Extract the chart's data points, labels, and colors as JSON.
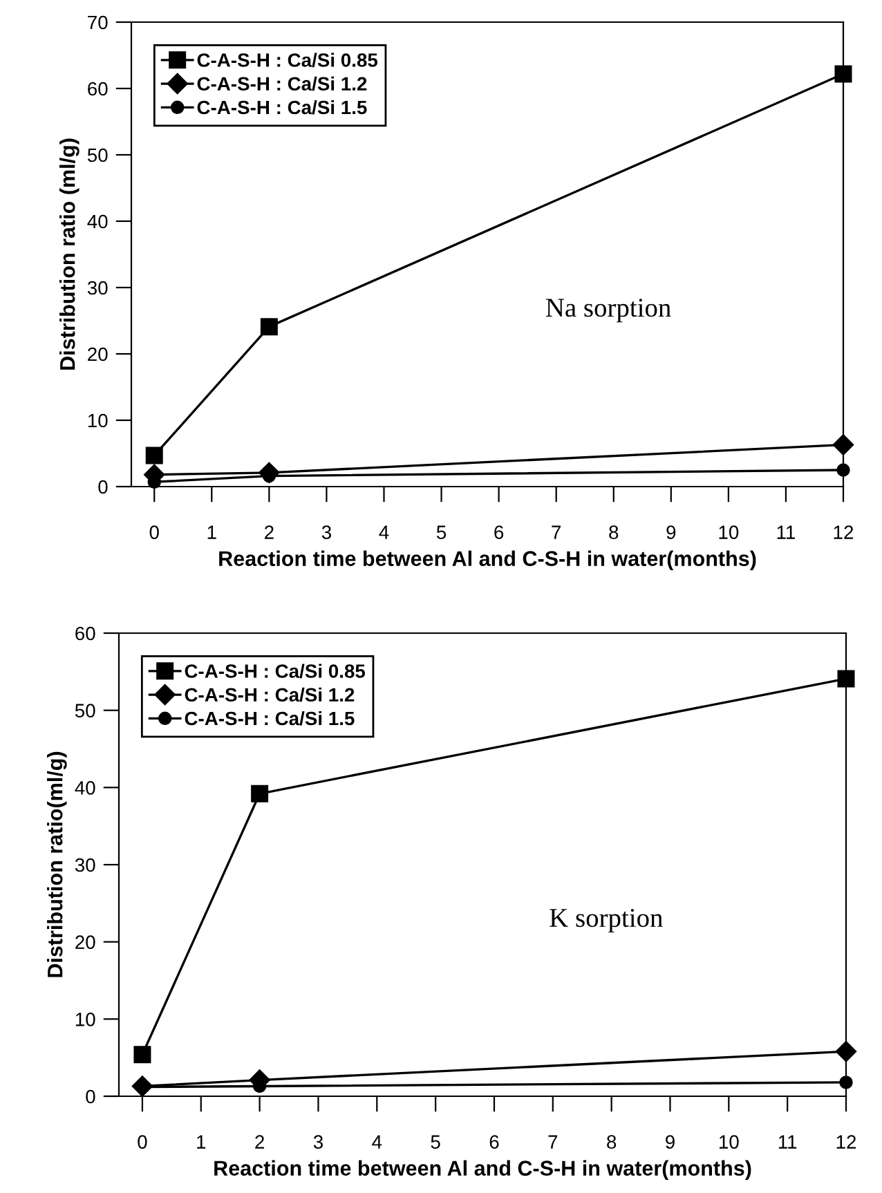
{
  "chart_data": [
    {
      "type": "line",
      "xlabel": "Reaction time between Al and C-S-H in water(months)",
      "ylabel": "Distribution ratio (ml/g)",
      "x": [
        0,
        2,
        12
      ],
      "series": [
        {
          "name": "C-A-S-H : Ca/Si 0.85",
          "color": "#000000",
          "marker": "square",
          "values": [
            4.7,
            24.1,
            62.2
          ]
        },
        {
          "name": "C-A-S-H : Ca/Si 1.2",
          "color": "#000000",
          "marker": "diamond",
          "values": [
            1.8,
            2.1,
            6.3
          ]
        },
        {
          "name": "C-A-S-H : Ca/Si 1.5",
          "color": "#000000",
          "marker": "circle",
          "values": [
            0.7,
            1.6,
            2.5
          ]
        }
      ],
      "xlim": [
        -0.4,
        12
      ],
      "xticks": [
        0,
        1,
        2,
        3,
        4,
        5,
        6,
        7,
        8,
        9,
        10,
        11,
        12
      ],
      "ylim": [
        0,
        70
      ],
      "yticks": [
        0,
        10,
        20,
        30,
        40,
        50,
        60,
        70
      ],
      "annotations": [
        "Na sorption"
      ],
      "legend": "top left",
      "grid": false,
      "line_style": "solid"
    },
    {
      "type": "line",
      "xlabel": "Reaction time between Al and C-S-H in water(months)",
      "ylabel": "Distribution ratio(ml/g)",
      "x": [
        0,
        2,
        12
      ],
      "series": [
        {
          "name": "C-A-S-H : Ca/Si 0.85",
          "color": "#000000",
          "marker": "square",
          "values": [
            5.4,
            39.2,
            54.1
          ]
        },
        {
          "name": "C-A-S-H : Ca/Si 1.2",
          "color": "#000000",
          "marker": "diamond",
          "values": [
            1.3,
            2.1,
            5.8
          ]
        },
        {
          "name": "C-A-S-H : Ca/Si 1.5",
          "color": "#000000",
          "marker": "circle",
          "values": [
            1.2,
            1.3,
            1.8
          ]
        }
      ],
      "xlim": [
        -0.4,
        12
      ],
      "xticks": [
        0,
        1,
        2,
        3,
        4,
        5,
        6,
        7,
        8,
        9,
        10,
        11,
        12
      ],
      "ylim": [
        0,
        60
      ],
      "yticks": [
        0,
        10,
        20,
        30,
        40,
        50,
        60
      ],
      "annotations": [
        "K sorption"
      ],
      "legend": "top left",
      "grid": false,
      "line_style": "solid"
    }
  ]
}
